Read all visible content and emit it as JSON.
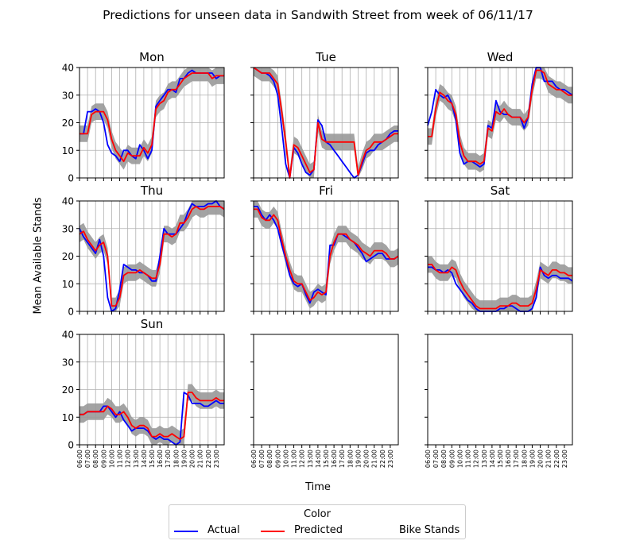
{
  "figure": {
    "suptitle": "Predictions for unseen data in Sandwith Street from week of 06/11/17",
    "ylabel": "Mean Available Stands",
    "xlabel": "Time"
  },
  "legend": {
    "title": "Color",
    "items": [
      {
        "label": "Actual",
        "color": "#0000ff",
        "style": "solid"
      },
      {
        "label": "Predicted",
        "color": "#ff0000",
        "style": "solid"
      },
      {
        "label": "Bike Stands",
        "color": "#000000",
        "style": "dashdot"
      }
    ]
  },
  "colors": {
    "actual": "#0000ff",
    "predicted": "#ff0000",
    "band": "#999999",
    "grid": "#b0b0b0"
  },
  "chart_data": {
    "type": "line",
    "x_ticks": [
      "06:00",
      "07:00",
      "08:00",
      "09:00",
      "10:00",
      "11:00",
      "12:00",
      "13:00",
      "14:00",
      "15:00",
      "16:00",
      "17:00",
      "18:00",
      "19:00",
      "20:00",
      "21:00",
      "22:00",
      "23:00"
    ],
    "x_range": [
      6,
      24
    ],
    "ylim": [
      0,
      40
    ],
    "y_ticks": [
      0,
      10,
      20,
      30,
      40
    ],
    "grid": true,
    "band_halfwidth": 3,
    "panels": [
      {
        "title": "Mon",
        "x": [
          6,
          6.5,
          7,
          7.5,
          8,
          8.5,
          9,
          9.5,
          10,
          10.5,
          11,
          11.5,
          12,
          12.5,
          13,
          13.5,
          14,
          14.5,
          15,
          15.5,
          16,
          16.5,
          17,
          17.5,
          18,
          18.5,
          19,
          19.5,
          20,
          20.5,
          21,
          21.5,
          22,
          22.5,
          23,
          23.5,
          24
        ],
        "actual": [
          16,
          16,
          24,
          24,
          25,
          24,
          20,
          12,
          9,
          8,
          6,
          10,
          10,
          8,
          7,
          12,
          10,
          7,
          10,
          26,
          28,
          30,
          32,
          32,
          31,
          36,
          36,
          38,
          39,
          38,
          38,
          38,
          38,
          38,
          36,
          37,
          37
        ],
        "predicted": [
          16,
          16,
          16,
          23,
          24,
          24,
          24,
          21,
          14,
          10,
          8,
          6,
          9,
          8,
          8,
          8,
          11,
          9,
          12,
          25,
          27,
          28,
          31,
          32,
          32,
          34,
          36,
          37,
          38,
          38,
          38,
          38,
          38,
          36,
          37,
          37,
          37
        ]
      },
      {
        "title": "Tue",
        "x": [
          6,
          6.5,
          7,
          7.5,
          8,
          8.5,
          9,
          9.5,
          10,
          10.5,
          11,
          11.5,
          12,
          12.5,
          13,
          13.5,
          14,
          14.5,
          15,
          15.5,
          16,
          16.5,
          17,
          17.5,
          18,
          18.5,
          19,
          19.5,
          20,
          20.5,
          21,
          21.5,
          22,
          22.5,
          23,
          23.5,
          24
        ],
        "actual": [
          40,
          39,
          38,
          38,
          37,
          35,
          30,
          18,
          5,
          0,
          11,
          9,
          5,
          2,
          1,
          3,
          21,
          19,
          13,
          12,
          10,
          8,
          6,
          4,
          2,
          0,
          1,
          5,
          9,
          10,
          10,
          12,
          13,
          14,
          16,
          17,
          17
        ],
        "predicted": [
          40,
          39,
          38,
          38,
          38,
          36,
          34,
          24,
          13,
          0,
          12,
          11,
          8,
          5,
          2,
          3,
          20,
          14,
          13,
          13,
          13,
          13,
          13,
          13,
          13,
          13,
          1,
          6,
          10,
          11,
          13,
          13,
          13,
          14,
          15,
          16,
          16
        ]
      },
      {
        "title": "Wed",
        "x": [
          6,
          6.5,
          7,
          7.5,
          8,
          8.5,
          9,
          9.5,
          10,
          10.5,
          11,
          11.5,
          12,
          12.5,
          13,
          13.5,
          14,
          14.5,
          15,
          15.5,
          16,
          16.5,
          17,
          17.5,
          18,
          18.5,
          19,
          19.5,
          20,
          20.5,
          21,
          21.5,
          22,
          22.5,
          23,
          23.5,
          24
        ],
        "actual": [
          19,
          24,
          32,
          30,
          29,
          30,
          27,
          21,
          9,
          5,
          6,
          6,
          5,
          4,
          5,
          19,
          18,
          28,
          24,
          23,
          23,
          22,
          22,
          22,
          18,
          22,
          34,
          40,
          40,
          35,
          35,
          35,
          33,
          32,
          32,
          31,
          30
        ],
        "predicted": [
          15,
          15,
          25,
          31,
          30,
          28,
          27,
          23,
          13,
          8,
          6,
          6,
          6,
          5,
          6,
          18,
          17,
          24,
          23,
          25,
          23,
          22,
          22,
          22,
          20,
          22,
          32,
          39,
          39,
          38,
          34,
          33,
          32,
          32,
          31,
          30,
          30
        ]
      },
      {
        "title": "Thu",
        "x": [
          6,
          6.5,
          7,
          7.5,
          8,
          8.5,
          9,
          9.5,
          10,
          10.5,
          11,
          11.5,
          12,
          12.5,
          13,
          13.5,
          14,
          14.5,
          15,
          15.5,
          16,
          16.5,
          17,
          17.5,
          18,
          18.5,
          19,
          19.5,
          20,
          20.5,
          21,
          21.5,
          22,
          22.5,
          23,
          23.5,
          24
        ],
        "actual": [
          30,
          27,
          25,
          23,
          21,
          26,
          20,
          5,
          0,
          1,
          8,
          17,
          16,
          15,
          15,
          14,
          14,
          13,
          11,
          11,
          20,
          30,
          28,
          28,
          28,
          30,
          32,
          36,
          39,
          38,
          38,
          38,
          39,
          39,
          40,
          38,
          37
        ],
        "predicted": [
          28,
          29,
          26,
          24,
          22,
          24,
          25,
          20,
          2,
          2,
          5,
          13,
          14,
          14,
          14,
          15,
          14,
          13,
          12,
          12,
          17,
          28,
          28,
          27,
          28,
          32,
          32,
          34,
          37,
          38,
          37,
          37,
          38,
          38,
          38,
          38,
          37
        ]
      },
      {
        "title": "Fri",
        "x": [
          6,
          6.5,
          7,
          7.5,
          8,
          8.5,
          9,
          9.5,
          10,
          10.5,
          11,
          11.5,
          12,
          12.5,
          13,
          13.5,
          14,
          14.5,
          15,
          15.5,
          16,
          16.5,
          17,
          17.5,
          18,
          18.5,
          19,
          19.5,
          20,
          20.5,
          21,
          21.5,
          22,
          22.5,
          23,
          23.5,
          24
        ],
        "actual": [
          38,
          38,
          35,
          33,
          35,
          33,
          30,
          24,
          19,
          13,
          10,
          9,
          10,
          6,
          3,
          7,
          8,
          7,
          6,
          24,
          24,
          28,
          28,
          27,
          26,
          25,
          23,
          21,
          18,
          19,
          20,
          21,
          21,
          19,
          19,
          19,
          20
        ],
        "predicted": [
          37,
          37,
          34,
          33,
          33,
          35,
          33,
          26,
          20,
          15,
          11,
          10,
          10,
          7,
          4,
          5,
          7,
          6,
          7,
          20,
          25,
          28,
          28,
          28,
          26,
          25,
          24,
          22,
          21,
          20,
          22,
          22,
          22,
          21,
          19,
          19,
          20
        ]
      },
      {
        "title": "Sat",
        "x": [
          6,
          6.5,
          7,
          7.5,
          8,
          8.5,
          9,
          9.5,
          10,
          10.5,
          11,
          11.5,
          12,
          12.5,
          13,
          13.5,
          14,
          14.5,
          15,
          15.5,
          16,
          16.5,
          17,
          17.5,
          18,
          18.5,
          19,
          19.5,
          20,
          20.5,
          21,
          21.5,
          22,
          22.5,
          23,
          23.5,
          24
        ],
        "actual": [
          16,
          16,
          15,
          15,
          14,
          15,
          14,
          10,
          8,
          6,
          4,
          3,
          1,
          0,
          0,
          0,
          0,
          0,
          1,
          1,
          2,
          2,
          1,
          0,
          0,
          0,
          1,
          5,
          16,
          13,
          12,
          13,
          13,
          12,
          12,
          12,
          11
        ],
        "predicted": [
          17,
          17,
          15,
          14,
          14,
          14,
          16,
          15,
          11,
          8,
          6,
          4,
          2,
          1,
          1,
          1,
          1,
          1,
          2,
          2,
          2,
          3,
          3,
          2,
          2,
          2,
          3,
          8,
          15,
          14,
          13,
          15,
          15,
          14,
          14,
          13,
          13
        ]
      },
      {
        "title": "Sun",
        "x": [
          6,
          6.5,
          7,
          7.5,
          8,
          8.5,
          9,
          9.5,
          10,
          10.5,
          11,
          11.5,
          12,
          12.5,
          13,
          13.5,
          14,
          14.5,
          15,
          15.5,
          16,
          16.5,
          17,
          17.5,
          18,
          18.5,
          19,
          19.5,
          20,
          20.5,
          21,
          21.5,
          22,
          22.5,
          23,
          23.5,
          24
        ],
        "actual": [
          11,
          11,
          12,
          12,
          12,
          12,
          14,
          14,
          12,
          10,
          12,
          9,
          7,
          5,
          6,
          6,
          6,
          5,
          3,
          2,
          3,
          2,
          2,
          1,
          0,
          1,
          19,
          18,
          15,
          15,
          15,
          14,
          14,
          15,
          16,
          15,
          15
        ],
        "predicted": [
          11,
          11,
          12,
          12,
          12,
          12,
          12,
          14,
          13,
          11,
          11,
          12,
          10,
          7,
          6,
          7,
          7,
          6,
          3,
          3,
          4,
          3,
          3,
          4,
          3,
          2,
          3,
          19,
          19,
          17,
          16,
          16,
          16,
          16,
          17,
          16,
          16
        ]
      },
      {
        "title": "",
        "x": [],
        "actual": [],
        "predicted": []
      },
      {
        "title": "",
        "x": [],
        "actual": [],
        "predicted": []
      }
    ]
  }
}
